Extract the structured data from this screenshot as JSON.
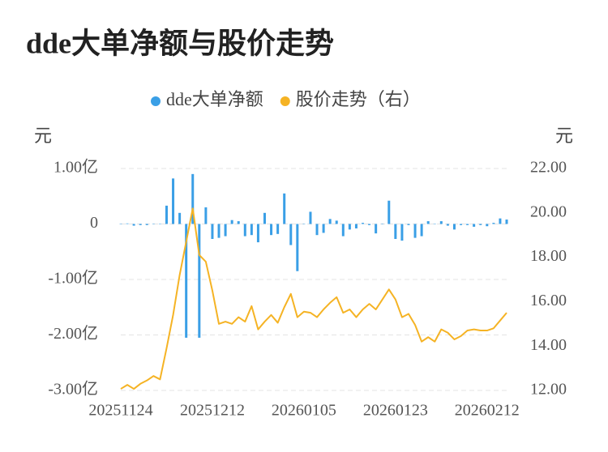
{
  "chart_data": {
    "type": "bar-line",
    "title": "dde大单净额与股价走势",
    "y_label": "元",
    "y2_label": "元",
    "categories": [
      "20251124",
      null,
      null,
      null,
      null,
      null,
      null,
      null,
      null,
      null,
      null,
      null,
      null,
      null,
      "20251212",
      null,
      null,
      null,
      null,
      null,
      null,
      null,
      null,
      null,
      null,
      null,
      null,
      null,
      "20260105",
      null,
      null,
      null,
      null,
      null,
      null,
      null,
      null,
      null,
      null,
      null,
      null,
      null,
      "20260123",
      null,
      null,
      null,
      null,
      null,
      null,
      null,
      null,
      null,
      null,
      null,
      null,
      null,
      "20260212",
      null,
      null,
      null
    ],
    "series": [
      {
        "name": "dde大单净额",
        "type": "bar",
        "color": "#3a9fe6",
        "values": [
          0,
          0.01,
          -0.03,
          -0.02,
          -0.02,
          0,
          0,
          0.33,
          0.82,
          0.2,
          -2.05,
          0.9,
          -2.05,
          0.3,
          -0.27,
          -0.25,
          -0.22,
          0.07,
          0.05,
          -0.22,
          -0.2,
          -0.33,
          0.2,
          -0.2,
          -0.18,
          0.55,
          -0.38,
          -0.85,
          0,
          0.22,
          -0.2,
          -0.16,
          0.09,
          0.06,
          -0.22,
          -0.1,
          -0.08,
          0.02,
          -0.02,
          -0.17,
          0,
          0.42,
          -0.27,
          -0.3,
          -0.02,
          -0.25,
          -0.22,
          0.05,
          0,
          0.05,
          -0.03,
          -0.1,
          -0.02,
          -0.02,
          -0.05,
          -0.02,
          -0.04,
          0.02,
          0.1,
          0.08
        ]
      },
      {
        "name": "股价走势（右）",
        "type": "line",
        "axis": "y2",
        "color": "#f5b324",
        "values": [
          12.07,
          12.25,
          12.07,
          12.3,
          12.45,
          12.65,
          12.5,
          13.9,
          15.4,
          17.2,
          18.7,
          20.2,
          18.1,
          17.8,
          16.5,
          15.0,
          15.1,
          15.0,
          15.3,
          15.1,
          15.8,
          14.75,
          15.1,
          15.4,
          15.05,
          15.75,
          16.35,
          15.3,
          15.55,
          15.5,
          15.3,
          15.65,
          15.95,
          16.2,
          15.5,
          15.65,
          15.3,
          15.65,
          15.9,
          15.65,
          16.1,
          16.55,
          16.1,
          15.3,
          15.45,
          14.95,
          14.2,
          14.4,
          14.2,
          14.75,
          14.6,
          14.3,
          14.45,
          14.7,
          14.75,
          14.7,
          14.7,
          14.8,
          15.15,
          15.5
        ]
      }
    ],
    "ylim": [
      -3,
      1
    ],
    "yticks": [
      {
        "value": 1,
        "label": "1.00亿"
      },
      0,
      {
        "value": -1,
        "label": "-1.00亿"
      },
      {
        "value": -2,
        "label": "-2.00亿"
      },
      {
        "value": -3,
        "label": "-3.00亿"
      }
    ],
    "y2lim": [
      12,
      22
    ],
    "y2ticks": [
      {
        "value": 22,
        "label": "22.00"
      },
      {
        "value": 20,
        "label": "20.00"
      },
      {
        "value": 18,
        "label": "18.00"
      },
      {
        "value": 16,
        "label": "16.00"
      },
      {
        "value": 14,
        "label": "14.00"
      },
      {
        "value": 12,
        "label": "12.00"
      }
    ],
    "grid": true,
    "legend": "top"
  }
}
